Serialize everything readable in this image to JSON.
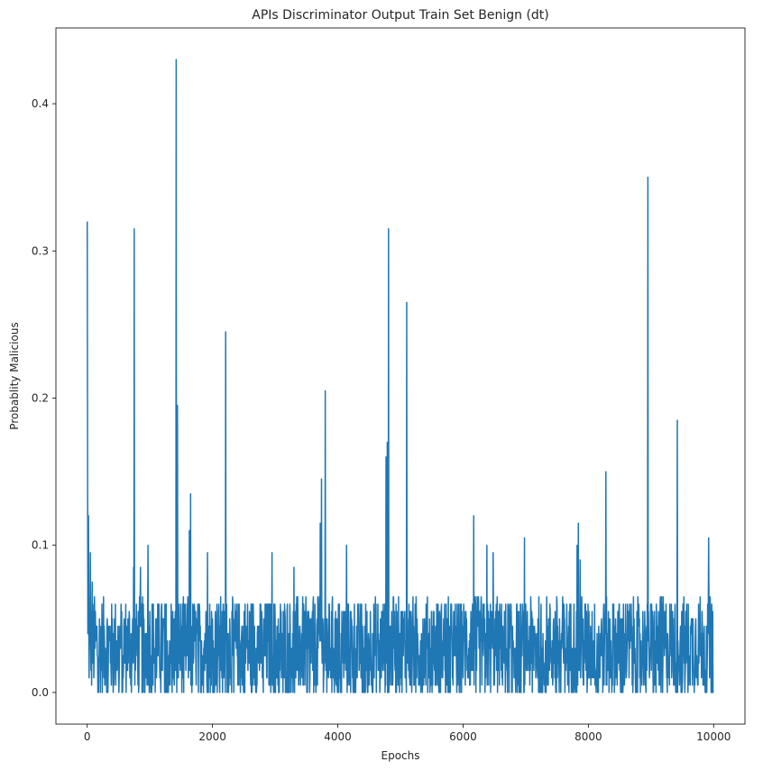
{
  "chart_data": {
    "type": "line",
    "title": "APIs Discriminator Output Train Set Benign (dt)",
    "xlabel": "Epochs",
    "ylabel": "Probablity Malicious",
    "xlim": [
      -500,
      10500
    ],
    "ylim": [
      -0.0215,
      0.4515
    ],
    "x_ticks": [
      0,
      2000,
      4000,
      6000,
      8000,
      10000
    ],
    "x_tick_labels": [
      "0",
      "2000",
      "4000",
      "6000",
      "8000",
      "10000"
    ],
    "y_ticks": [
      0.0,
      0.1,
      0.2,
      0.3,
      0.4
    ],
    "y_tick_labels": [
      "0.0",
      "0.1",
      "0.2",
      "0.3",
      "0.4"
    ],
    "grid": false,
    "series": [
      {
        "color": "#1f77b4",
        "spikes": [
          {
            "x": 0,
            "y": 0.32
          },
          {
            "x": 5,
            "y": 0.185
          },
          {
            "x": 20,
            "y": 0.12
          },
          {
            "x": 50,
            "y": 0.095
          },
          {
            "x": 80,
            "y": 0.075
          },
          {
            "x": 740,
            "y": 0.085
          },
          {
            "x": 750,
            "y": 0.315
          },
          {
            "x": 850,
            "y": 0.085
          },
          {
            "x": 970,
            "y": 0.1
          },
          {
            "x": 1420,
            "y": 0.43
          },
          {
            "x": 1440,
            "y": 0.195
          },
          {
            "x": 1630,
            "y": 0.11
          },
          {
            "x": 1650,
            "y": 0.135
          },
          {
            "x": 1920,
            "y": 0.095
          },
          {
            "x": 2210,
            "y": 0.245
          },
          {
            "x": 2950,
            "y": 0.095
          },
          {
            "x": 3300,
            "y": 0.085
          },
          {
            "x": 3720,
            "y": 0.115
          },
          {
            "x": 3740,
            "y": 0.145
          },
          {
            "x": 3800,
            "y": 0.205
          },
          {
            "x": 4140,
            "y": 0.1
          },
          {
            "x": 4770,
            "y": 0.16
          },
          {
            "x": 4790,
            "y": 0.17
          },
          {
            "x": 4810,
            "y": 0.315
          },
          {
            "x": 5100,
            "y": 0.265
          },
          {
            "x": 6170,
            "y": 0.12
          },
          {
            "x": 6380,
            "y": 0.1
          },
          {
            "x": 6480,
            "y": 0.095
          },
          {
            "x": 6980,
            "y": 0.105
          },
          {
            "x": 7820,
            "y": 0.1
          },
          {
            "x": 7840,
            "y": 0.115
          },
          {
            "x": 7870,
            "y": 0.09
          },
          {
            "x": 8280,
            "y": 0.15
          },
          {
            "x": 8950,
            "y": 0.35
          },
          {
            "x": 9420,
            "y": 0.185
          },
          {
            "x": 9920,
            "y": 0.105
          }
        ],
        "baseline_mean": 0.032,
        "baseline_max": 0.07,
        "baseline_min": 0.0,
        "n_points": 10000
      }
    ]
  }
}
